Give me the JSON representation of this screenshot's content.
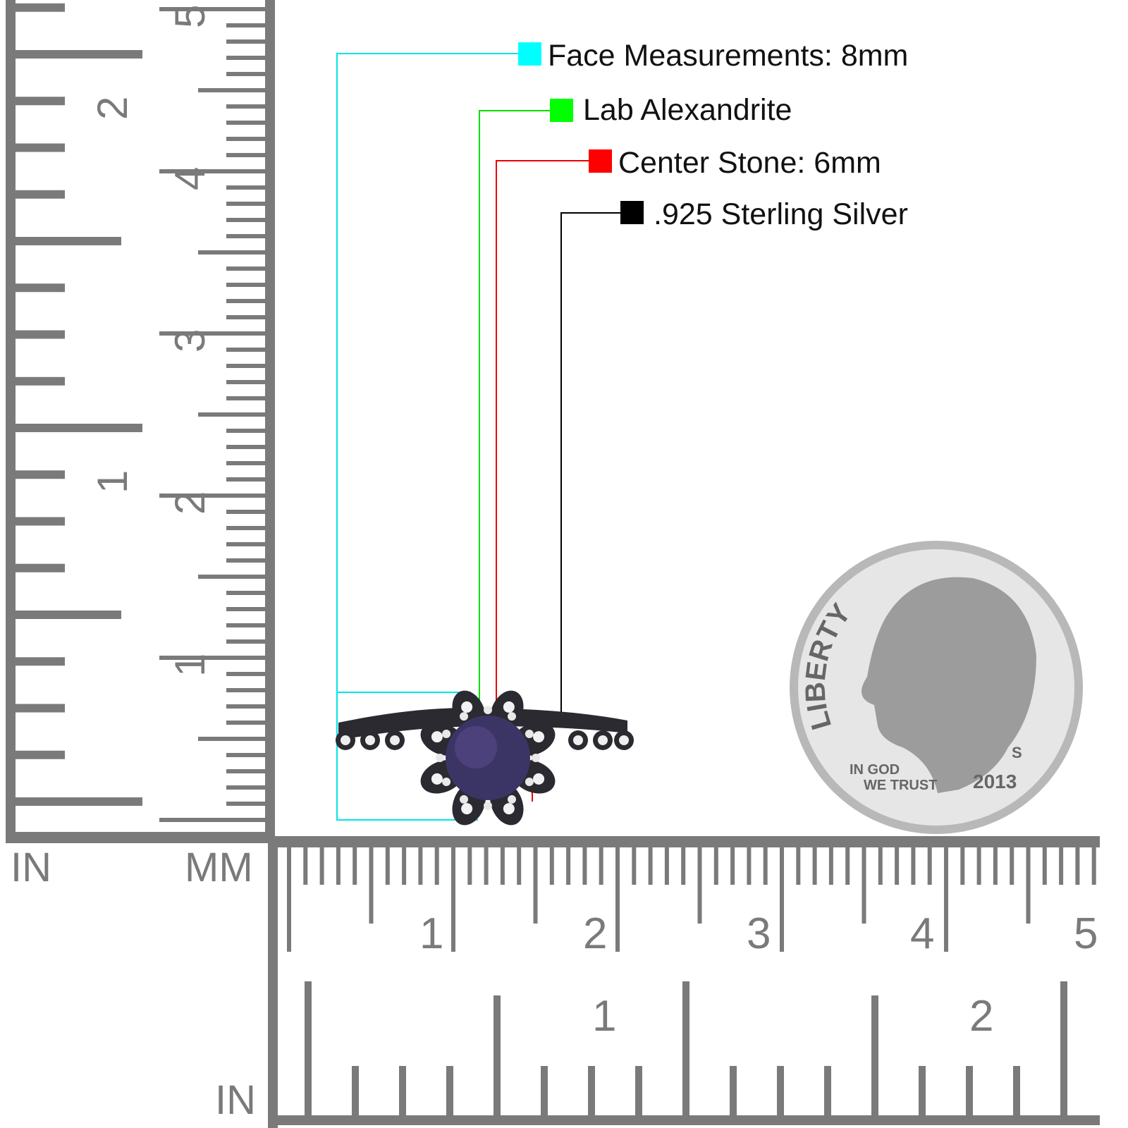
{
  "legend": [
    {
      "label": "Face Measurements: 8mm",
      "color": "#00ffff"
    },
    {
      "label": "Lab Alexandrite",
      "color": "#00ff00"
    },
    {
      "label": "Center Stone: 6mm",
      "color": "#ff0000"
    },
    {
      "label": ".925 Sterling Silver",
      "color": "#000000"
    }
  ],
  "rulers": {
    "unit_in_left": "IN",
    "unit_mm": "MM",
    "unit_in_bottom": "IN",
    "vertical_cm_labels": [
      "1",
      "2",
      "3",
      "4",
      "5"
    ],
    "vertical_in_labels": [
      "1",
      "2"
    ],
    "horizontal_cm_labels": [
      "1",
      "2",
      "3",
      "4",
      "5"
    ],
    "horizontal_in_labels": [
      "1",
      "2"
    ],
    "color": "#7a7a7a"
  },
  "coin": {
    "liberty": "LIBERTY",
    "motto_1": "IN GOD",
    "motto_2": "WE TRUST",
    "year": "2013",
    "mint_mark": "S"
  },
  "ring": {
    "stone_color": "#3b3566",
    "metal_color": "#2a2a30"
  }
}
